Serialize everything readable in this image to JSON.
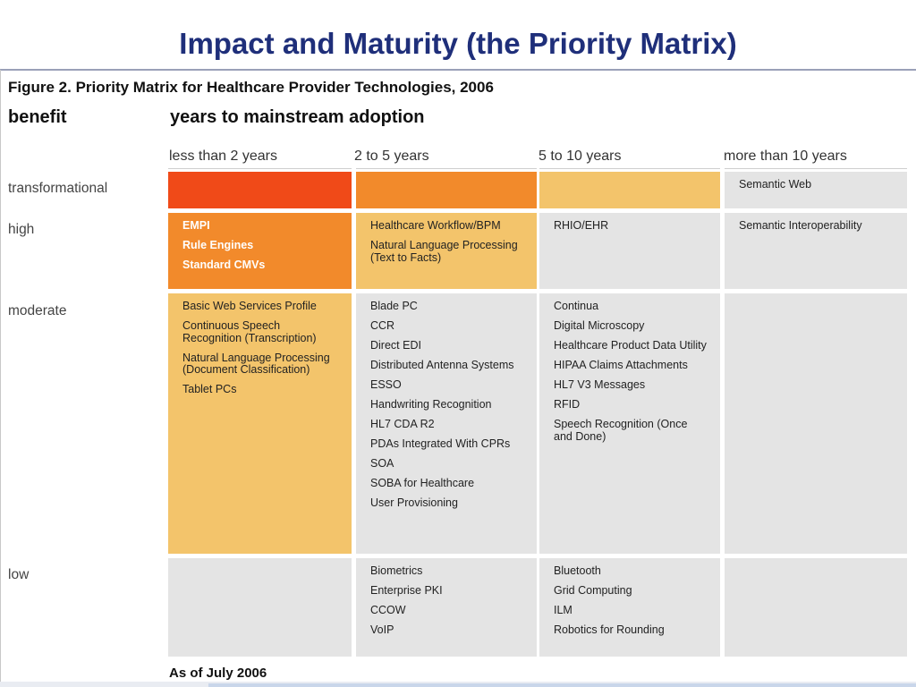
{
  "slide_title": "Impact and Maturity (the Priority Matrix)",
  "figure": {
    "caption": "Figure 2. Priority Matrix for Healthcare Provider Technologies, 2006",
    "benefit_label": "benefit",
    "years_label": "years to mainstream adoption",
    "columns": [
      "less than 2 years",
      "2 to 5 years",
      "5 to 10 years",
      "more than 10 years"
    ],
    "rows": [
      "transformational",
      "high",
      "moderate",
      "low"
    ],
    "cells": {
      "transformational": [
        [],
        [],
        [],
        [
          "Semantic Web"
        ]
      ],
      "high": [
        [
          "EMPI",
          "Rule Engines",
          "Standard CMVs"
        ],
        [
          "Healthcare Workflow/BPM",
          "Natural Language Processing (Text to Facts)"
        ],
        [
          "RHIO/EHR"
        ],
        [
          "Semantic Interoperability"
        ]
      ],
      "moderate": [
        [
          "Basic Web Services Profile",
          "Continuous Speech Recognition (Transcription)",
          "Natural Language Processing (Document Classification)",
          "Tablet PCs"
        ],
        [
          "Blade PC",
          "CCR",
          "Direct EDI",
          "Distributed Antenna Systems",
          "ESSO",
          "Handwriting Recognition",
          "HL7 CDA R2",
          "PDAs Integrated With CPRs",
          "SOA",
          "SOBA for Healthcare",
          "User Provisioning"
        ],
        [
          "Continua",
          "Digital Microscopy",
          "Healthcare Product Data Utility",
          "HIPAA Claims Attachments",
          "HL7 V3 Messages",
          "RFID",
          "Speech Recognition (Once and Done)"
        ],
        []
      ],
      "low": [
        [],
        [
          "Biometrics",
          "Enterprise PKI",
          "CCOW",
          "VoIP"
        ],
        [
          "Bluetooth",
          "Grid Computing",
          "ILM",
          "Robotics for Rounding"
        ],
        []
      ]
    },
    "colors": {
      "deep_orange": "#f04a18",
      "orange": "#f28a2b",
      "gold": "#f3c46b",
      "grey": "#e4e4e4",
      "title_blue": "#1f2f7a"
    },
    "footnote": "As of July 2006"
  }
}
